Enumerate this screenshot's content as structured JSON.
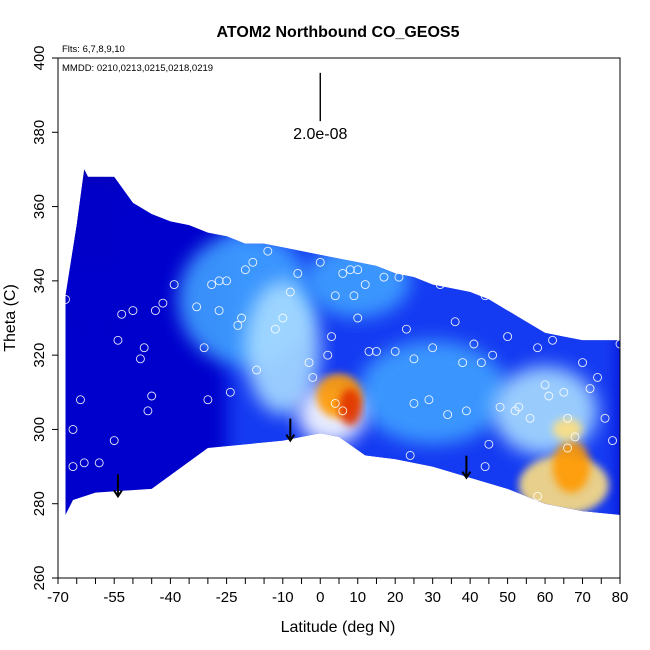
{
  "chart_data": {
    "type": "heatmap",
    "title": "ATOM2 Northbound CO_GEOS5",
    "flights_note": "Flts: 6,7,8,9,10",
    "dates_note": "MMDD: 0210,0213,0215,0218,0219",
    "xlabel": "Latitude (deg N)",
    "ylabel": "Theta (C)",
    "xlim": [
      -70,
      80
    ],
    "ylim": [
      260,
      400
    ],
    "x_ticks": [
      -70,
      -55,
      -40,
      -25,
      -10,
      0,
      10,
      20,
      30,
      40,
      50,
      60,
      70,
      80
    ],
    "x_minor_step": 5,
    "y_ticks": [
      260,
      280,
      300,
      320,
      340,
      360,
      380,
      400
    ],
    "scale_bar": {
      "label": "2.0e-08",
      "x": 0,
      "y_bottom": 383,
      "y_top": 396
    },
    "color_scale": [
      "#1a0a7a",
      "#0000cc",
      "#1e4fff",
      "#3fa0ff",
      "#a8dcff",
      "#ffffff",
      "#ffe080",
      "#ff9900",
      "#e03000"
    ],
    "domain": {
      "top": [
        [
          -68,
          336
        ],
        [
          -65,
          355
        ],
        [
          -63,
          370
        ],
        [
          -62,
          368
        ],
        [
          -55,
          368
        ],
        [
          -50,
          361
        ],
        [
          -45,
          358
        ],
        [
          -40,
          356
        ],
        [
          -35,
          355
        ],
        [
          -30,
          353
        ],
        [
          -25,
          352
        ],
        [
          -20,
          350
        ],
        [
          -15,
          350
        ],
        [
          -10,
          349
        ],
        [
          -5,
          348
        ],
        [
          0,
          347
        ],
        [
          5,
          346
        ],
        [
          10,
          345
        ],
        [
          15,
          344
        ],
        [
          20,
          342
        ],
        [
          25,
          341
        ],
        [
          30,
          339
        ],
        [
          35,
          338
        ],
        [
          40,
          337
        ],
        [
          45,
          335
        ],
        [
          50,
          332
        ],
        [
          55,
          329
        ],
        [
          60,
          326
        ],
        [
          65,
          325
        ],
        [
          70,
          324
        ],
        [
          75,
          324
        ],
        [
          80,
          324
        ]
      ],
      "bottom": [
        [
          -68,
          277
        ],
        [
          -66,
          281
        ],
        [
          -60,
          283
        ],
        [
          -45,
          284
        ],
        [
          -30,
          295
        ],
        [
          -10,
          297
        ],
        [
          0,
          299
        ],
        [
          5,
          298
        ],
        [
          12,
          293
        ],
        [
          20,
          292
        ],
        [
          30,
          290
        ],
        [
          40,
          287
        ],
        [
          50,
          284
        ],
        [
          60,
          280
        ],
        [
          70,
          278
        ],
        [
          80,
          277
        ]
      ]
    },
    "field_blobs": [
      {
        "lat": -60,
        "theta": 350,
        "r_lat": 12,
        "r_theta": 20,
        "level": 1
      },
      {
        "lat": -20,
        "theta": 335,
        "r_lat": 18,
        "r_theta": 18,
        "level": 3
      },
      {
        "lat": -10,
        "theta": 322,
        "r_lat": 10,
        "r_theta": 18,
        "level": 4
      },
      {
        "lat": 10,
        "theta": 340,
        "r_lat": 14,
        "r_theta": 10,
        "level": 3
      },
      {
        "lat": 30,
        "theta": 310,
        "r_lat": 20,
        "r_theta": 14,
        "level": 3
      },
      {
        "lat": 60,
        "theta": 305,
        "r_lat": 14,
        "r_theta": 12,
        "level": 4
      },
      {
        "lat": 3,
        "theta": 304,
        "r_lat": 9,
        "r_theta": 8,
        "level": 5
      },
      {
        "lat": 5,
        "theta": 309,
        "r_lat": 6,
        "r_theta": 6,
        "level": 7
      },
      {
        "lat": 8,
        "theta": 306,
        "r_lat": 3,
        "r_theta": 5,
        "level": 8
      },
      {
        "lat": 65,
        "theta": 285,
        "r_lat": 12,
        "r_theta": 8,
        "level": 6
      },
      {
        "lat": 67,
        "theta": 290,
        "r_lat": 5,
        "r_theta": 7,
        "level": 7
      },
      {
        "lat": 66,
        "theta": 300,
        "r_lat": 4,
        "r_theta": 3,
        "level": 6
      }
    ],
    "observation_points": [
      [
        -68,
        335
      ],
      [
        -67,
        360
      ],
      [
        -66,
        300
      ],
      [
        -66,
        290
      ],
      [
        -64,
        308
      ],
      [
        -63,
        291
      ],
      [
        -59,
        291
      ],
      [
        -55,
        297
      ],
      [
        -54,
        324
      ],
      [
        -53,
        331
      ],
      [
        -50,
        332
      ],
      [
        -48,
        319
      ],
      [
        -47,
        322
      ],
      [
        -46,
        305
      ],
      [
        -45,
        309
      ],
      [
        -44,
        332
      ],
      [
        -42,
        334
      ],
      [
        -39,
        339
      ],
      [
        -33,
        333
      ],
      [
        -31,
        322
      ],
      [
        -30,
        308
      ],
      [
        -29,
        339
      ],
      [
        -27,
        340
      ],
      [
        -25,
        340
      ],
      [
        -24,
        310
      ],
      [
        -22,
        328
      ],
      [
        -21,
        330
      ],
      [
        -20,
        343
      ],
      [
        -18,
        345
      ],
      [
        -14,
        348
      ],
      [
        -12,
        327
      ],
      [
        -10,
        330
      ],
      [
        -8,
        337
      ],
      [
        -6,
        342
      ],
      [
        -3,
        318
      ],
      [
        -2,
        314
      ],
      [
        0,
        345
      ],
      [
        3,
        325
      ],
      [
        4,
        336
      ],
      [
        4,
        307
      ],
      [
        6,
        342
      ],
      [
        8,
        343
      ],
      [
        9,
        336
      ],
      [
        10,
        343
      ],
      [
        12,
        339
      ],
      [
        13,
        321
      ],
      [
        15,
        321
      ],
      [
        17,
        341
      ],
      [
        18,
        345
      ],
      [
        20,
        321
      ],
      [
        21,
        341
      ],
      [
        23,
        327
      ],
      [
        25,
        319
      ],
      [
        25,
        307
      ],
      [
        28,
        346
      ],
      [
        29,
        308
      ],
      [
        30,
        322
      ],
      [
        32,
        339
      ],
      [
        34,
        304
      ],
      [
        36,
        329
      ],
      [
        38,
        318
      ],
      [
        39,
        305
      ],
      [
        41,
        323
      ],
      [
        43,
        318
      ],
      [
        44,
        336
      ],
      [
        45,
        296
      ],
      [
        46,
        320
      ],
      [
        48,
        306
      ],
      [
        50,
        325
      ],
      [
        52,
        305
      ],
      [
        53,
        306
      ],
      [
        56,
        303
      ],
      [
        58,
        322
      ],
      [
        60,
        312
      ],
      [
        61,
        309
      ],
      [
        62,
        324
      ],
      [
        65,
        310
      ],
      [
        66,
        303
      ],
      [
        66,
        295
      ],
      [
        68,
        298
      ],
      [
        70,
        318
      ],
      [
        72,
        311
      ],
      [
        74,
        314
      ],
      [
        76,
        303
      ],
      [
        78,
        297
      ],
      [
        80,
        323
      ],
      [
        2,
        320
      ],
      [
        6,
        305
      ],
      [
        10,
        330
      ],
      [
        -17,
        316
      ],
      [
        -27,
        332
      ],
      [
        44,
        290
      ],
      [
        24,
        293
      ],
      [
        58,
        282
      ]
    ],
    "arrows": [
      {
        "lat": -54,
        "theta": 282
      },
      {
        "lat": -8,
        "theta": 297
      },
      {
        "lat": 39,
        "theta": 287
      }
    ]
  }
}
